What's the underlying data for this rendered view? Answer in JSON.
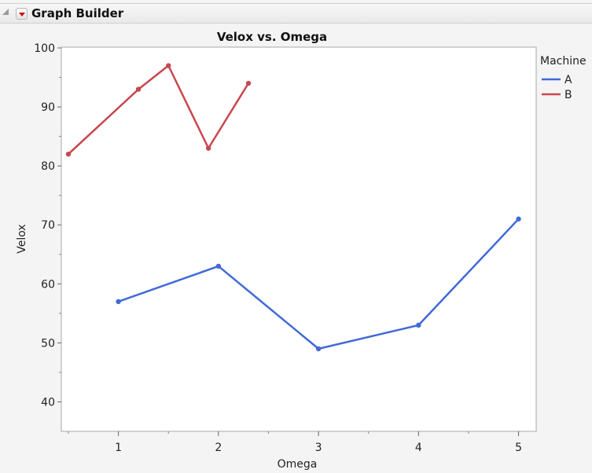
{
  "header": {
    "title": "Graph Builder"
  },
  "chart_data": {
    "type": "line",
    "title": "Velox vs. Omega",
    "xlabel": "Omega",
    "ylabel": "Velox",
    "xlim": [
      0.5,
      5.2
    ],
    "ylim": [
      35,
      100
    ],
    "xticks": [
      1,
      2,
      3,
      4,
      5
    ],
    "yticks": [
      40,
      50,
      60,
      70,
      80,
      90,
      100
    ],
    "legend": {
      "title": "Machine",
      "placement": "right"
    },
    "series": [
      {
        "name": "A",
        "color": "#4169d8",
        "x": [
          1,
          2,
          3,
          4,
          5
        ],
        "y": [
          57,
          63,
          49,
          53,
          71
        ]
      },
      {
        "name": "B",
        "color": "#c8474f",
        "x": [
          0.5,
          1.2,
          1.5,
          1.9,
          2.3
        ],
        "y": [
          82,
          93,
          97,
          83,
          94
        ]
      }
    ]
  }
}
